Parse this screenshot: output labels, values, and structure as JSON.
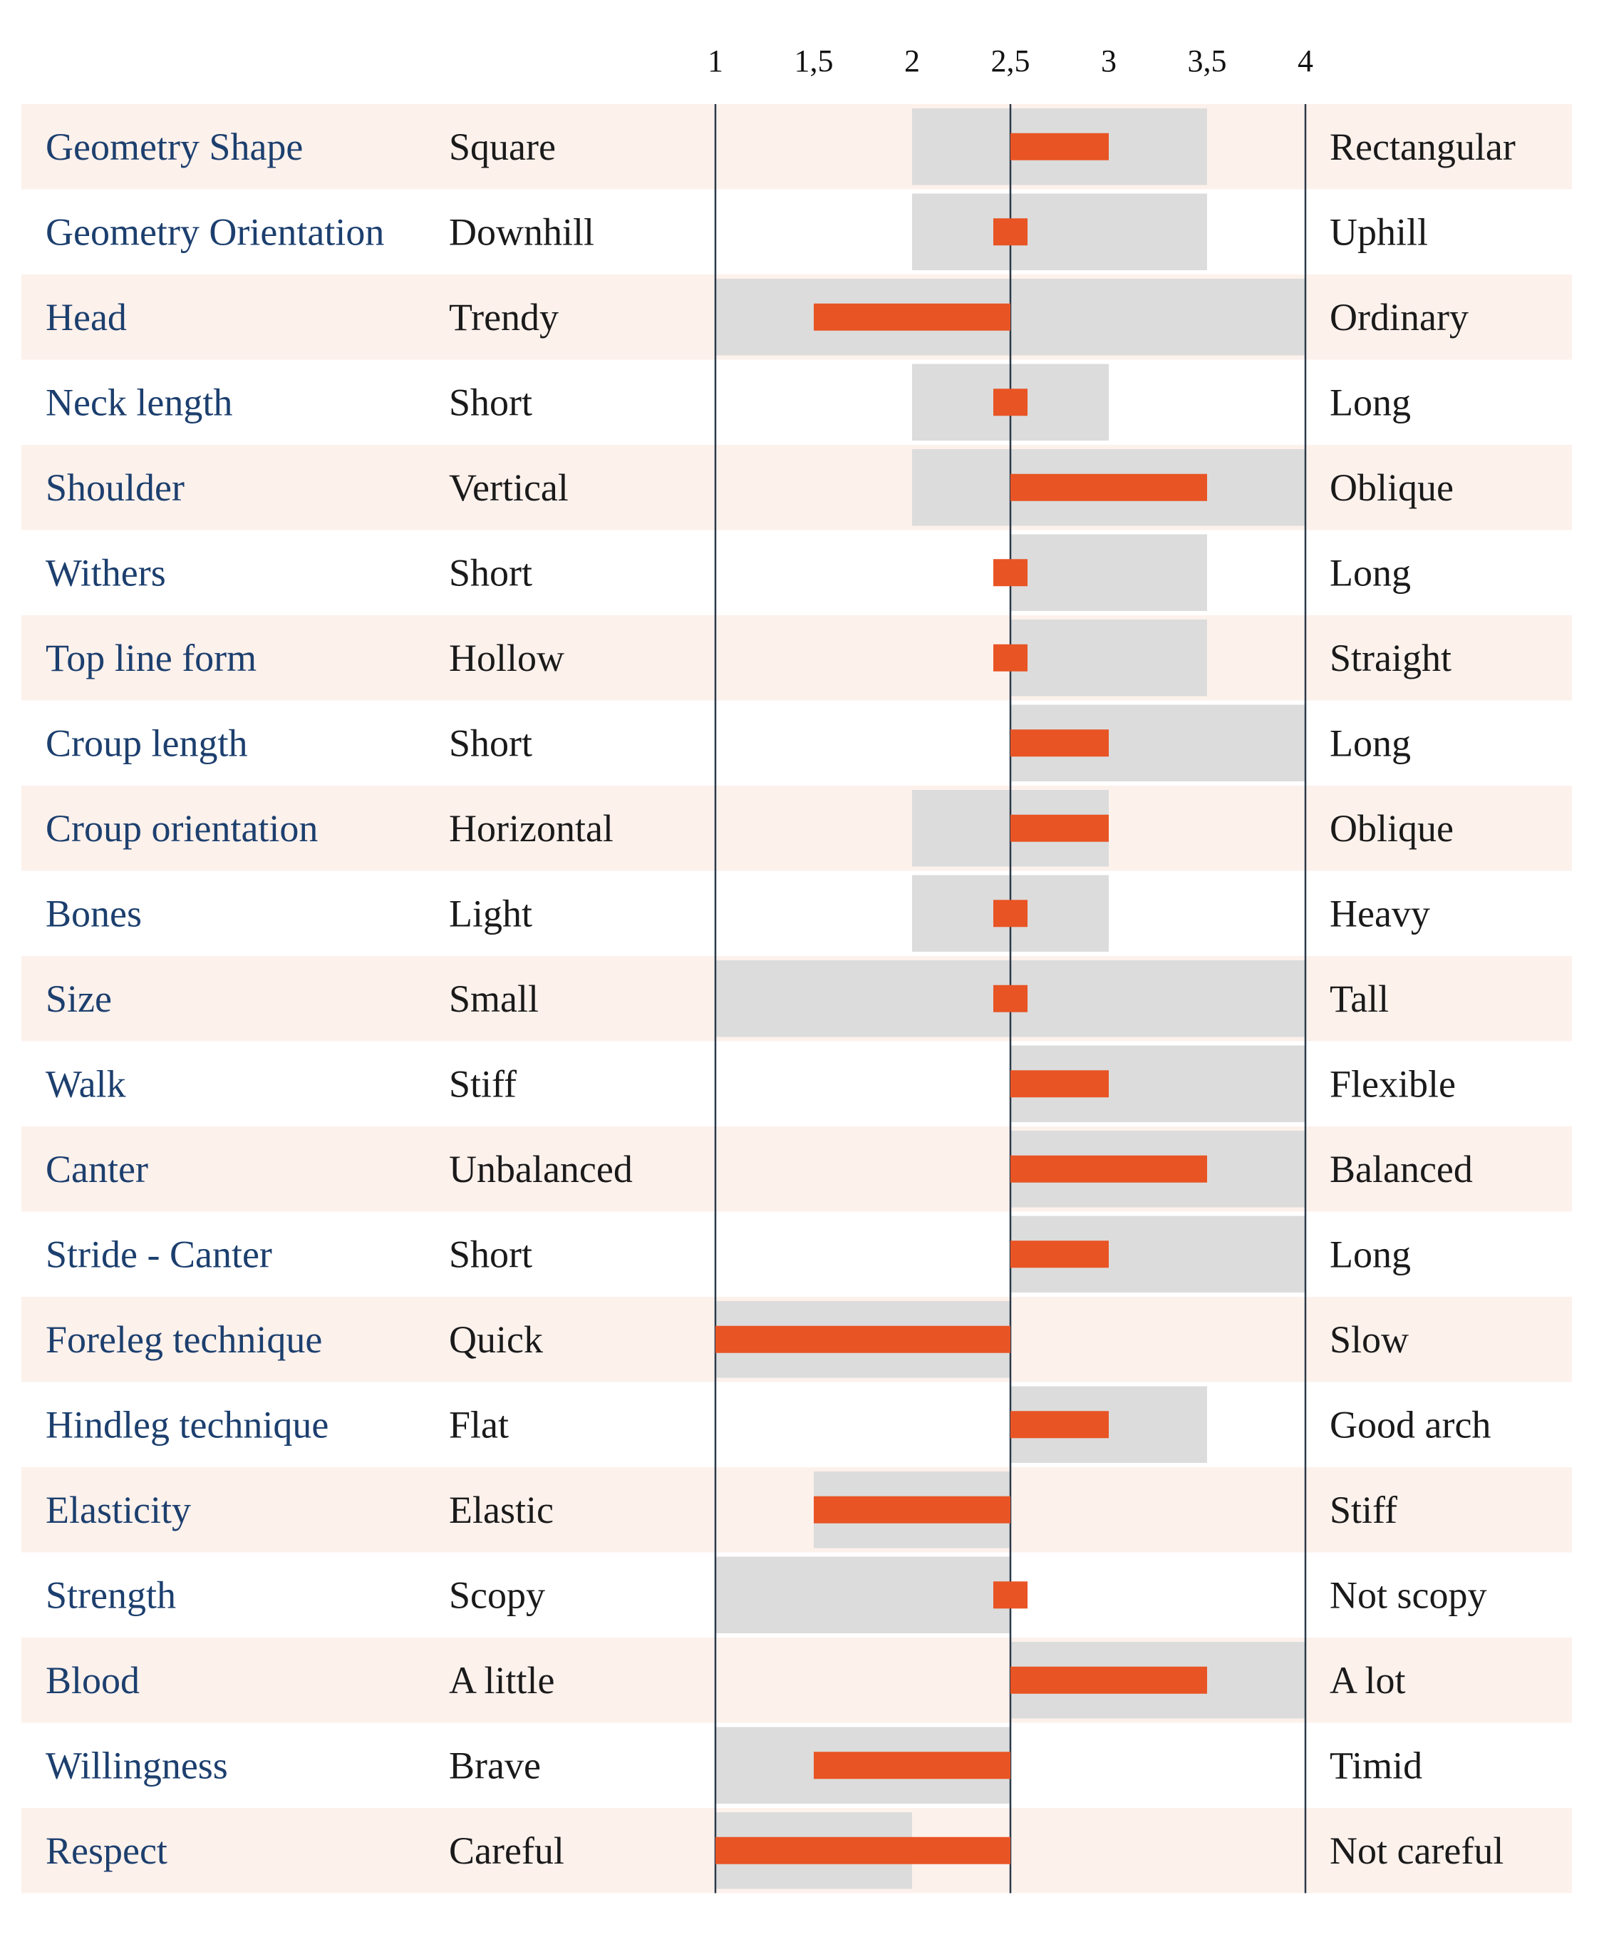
{
  "chart_data": {
    "type": "bar",
    "title": "",
    "xlabel": "",
    "ylabel": "",
    "xlim": [
      1,
      4
    ],
    "reference": 2.5,
    "ticks": [
      {
        "value": 1,
        "label": "1"
      },
      {
        "value": 1.5,
        "label": "1,5"
      },
      {
        "value": 2,
        "label": "2"
      },
      {
        "value": 2.5,
        "label": "2,5"
      },
      {
        "value": 3,
        "label": "3"
      },
      {
        "value": 3.5,
        "label": "3,5"
      },
      {
        "value": 4,
        "label": "4"
      }
    ],
    "rows": [
      {
        "trait": "Geometry Shape",
        "low": "Square",
        "high": "Rectangular",
        "range": [
          2,
          3.5
        ],
        "value": 3
      },
      {
        "trait": "Geometry Orientation",
        "low": "Downhill",
        "high": "Uphill",
        "range": [
          2,
          3.5
        ],
        "value": 2.5
      },
      {
        "trait": "Head",
        "low": "Trendy",
        "high": "Ordinary",
        "range": [
          1,
          4
        ],
        "value": 1.5
      },
      {
        "trait": "Neck length",
        "low": "Short",
        "high": "Long",
        "range": [
          2,
          3
        ],
        "value": 2.5
      },
      {
        "trait": "Shoulder",
        "low": "Vertical",
        "high": "Oblique",
        "range": [
          2,
          4
        ],
        "value": 3.5
      },
      {
        "trait": "Withers",
        "low": "Short",
        "high": "Long",
        "range": [
          2.5,
          3.5
        ],
        "value": 2.5
      },
      {
        "trait": "Top line form",
        "low": "Hollow",
        "high": "Straight",
        "range": [
          2.5,
          3.5
        ],
        "value": 2.5
      },
      {
        "trait": "Croup length",
        "low": "Short",
        "high": "Long",
        "range": [
          2.5,
          4
        ],
        "value": 3
      },
      {
        "trait": "Croup orientation",
        "low": "Horizontal",
        "high": "Oblique",
        "range": [
          2,
          3
        ],
        "value": 3
      },
      {
        "trait": "Bones",
        "low": "Light",
        "high": "Heavy",
        "range": [
          2,
          3
        ],
        "value": 2.5
      },
      {
        "trait": "Size",
        "low": "Small",
        "high": "Tall",
        "range": [
          1,
          4
        ],
        "value": 2.5
      },
      {
        "trait": "Walk",
        "low": "Stiff",
        "high": "Flexible",
        "range": [
          2.5,
          4
        ],
        "value": 3
      },
      {
        "trait": "Canter",
        "low": "Unbalanced",
        "high": "Balanced",
        "range": [
          2.5,
          4
        ],
        "value": 3.5
      },
      {
        "trait": "Stride - Canter",
        "low": "Short",
        "high": "Long",
        "range": [
          2.5,
          4
        ],
        "value": 3
      },
      {
        "trait": "Foreleg technique",
        "low": "Quick",
        "high": "Slow",
        "range": [
          1,
          2.5
        ],
        "value": 1
      },
      {
        "trait": "Hindleg technique",
        "low": "Flat",
        "high": "Good arch",
        "range": [
          2.5,
          3.5
        ],
        "value": 3
      },
      {
        "trait": "Elasticity",
        "low": "Elastic",
        "high": "Stiff",
        "range": [
          1.5,
          2.5
        ],
        "value": 1.5
      },
      {
        "trait": "Strength",
        "low": "Scopy",
        "high": "Not scopy",
        "range": [
          1,
          2.5
        ],
        "value": 2.5
      },
      {
        "trait": "Blood",
        "low": "A little",
        "high": "A lot",
        "range": [
          2.5,
          4
        ],
        "value": 3.5
      },
      {
        "trait": "Willingness",
        "low": "Brave",
        "high": "Timid",
        "range": [
          1,
          2.5
        ],
        "value": 1.5
      },
      {
        "trait": "Respect",
        "low": "Careful",
        "high": "Not careful",
        "range": [
          1,
          2
        ],
        "value": 1
      }
    ]
  },
  "colors": {
    "stripe": "#fdf1ec",
    "range": "#dcdcdc",
    "bar": "#e85424",
    "axis": "#2b3a4a",
    "trait_text": "#1c3f6e",
    "pole_text": "#1a1a1a"
  }
}
